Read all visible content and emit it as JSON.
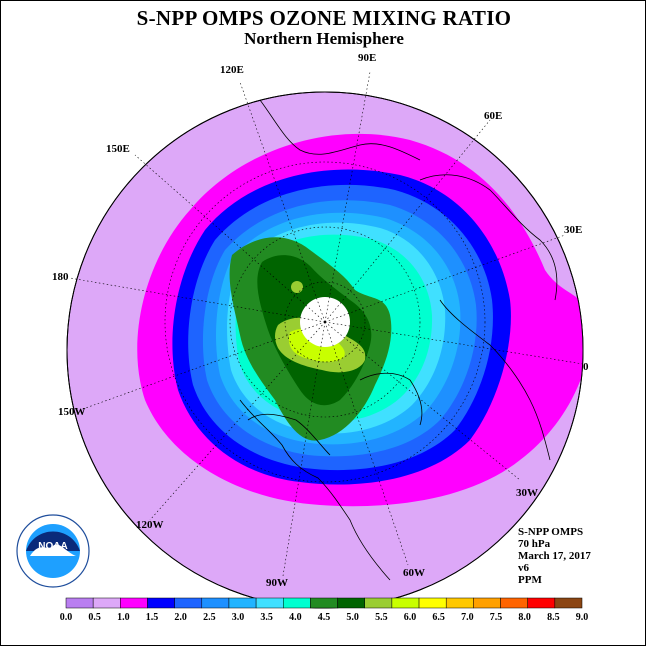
{
  "title": "S-NPP OMPS OZONE MIXING RATIO",
  "subtitle": "Northern Hemisphere",
  "longitude_labels": {
    "e90": "90E",
    "e60": "60E",
    "e30": "30E",
    "zero": "0",
    "w30": "30W",
    "w60": "60W",
    "w90": "90W",
    "w120": "120W",
    "w150": "150W",
    "d180": "180",
    "e150": "150E",
    "e120": "120E"
  },
  "info": {
    "instrument": "S-NPP OMPS",
    "level": "70 hPa",
    "date": "March 17, 2017",
    "version": "v6",
    "units": "PPM"
  },
  "colorbar": {
    "ticks": [
      "0.0",
      "0.5",
      "1.0",
      "1.5",
      "2.0",
      "2.5",
      "3.0",
      "3.5",
      "4.0",
      "4.5",
      "5.0",
      "5.5",
      "6.0",
      "6.5",
      "7.0",
      "7.5",
      "8.0",
      "8.5",
      "9.0"
    ],
    "colors": [
      "#b97ef0",
      "#dda8f8",
      "#ff00ff",
      "#0000ff",
      "#1e64ff",
      "#1e90ff",
      "#22b4ff",
      "#40e0ff",
      "#00ffd0",
      "#228b22",
      "#006400",
      "#9acd32",
      "#c8ff00",
      "#ffff00",
      "#ffc800",
      "#ffa000",
      "#ff6400",
      "#ff0000",
      "#8b4513"
    ]
  },
  "logo": {
    "text": "NOAA"
  }
}
